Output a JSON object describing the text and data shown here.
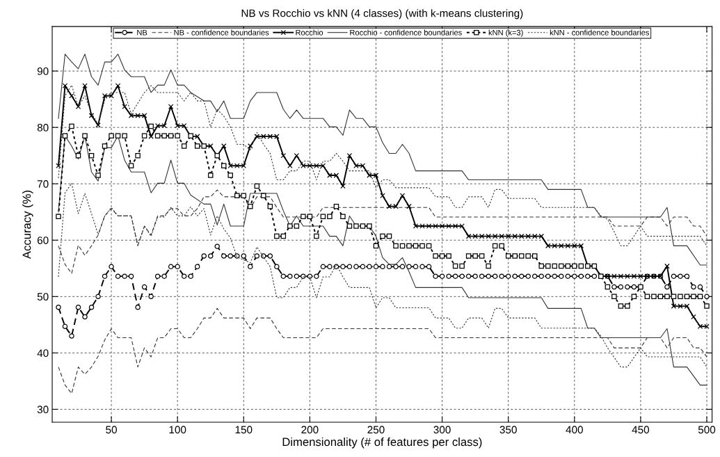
{
  "chart_data": {
    "type": "line",
    "title": "NB vs Rocchio vs kNN (4 classes) (with k-means clustering)",
    "xlabel": "Dimensionality (# of features per class)",
    "ylabel": "Accuracy (%)",
    "x": [
      10,
      15,
      20,
      25,
      30,
      35,
      40,
      45,
      50,
      55,
      60,
      65,
      70,
      75,
      80,
      85,
      90,
      95,
      100,
      105,
      110,
      115,
      120,
      125,
      130,
      135,
      140,
      145,
      150,
      155,
      160,
      165,
      170,
      175,
      180,
      185,
      190,
      195,
      200,
      205,
      210,
      215,
      220,
      225,
      230,
      235,
      240,
      245,
      250,
      255,
      260,
      265,
      270,
      275,
      280,
      285,
      290,
      295,
      300,
      305,
      310,
      315,
      320,
      325,
      330,
      335,
      340,
      345,
      350,
      355,
      360,
      365,
      370,
      375,
      380,
      385,
      390,
      395,
      400,
      405,
      410,
      415,
      420,
      425,
      430,
      435,
      440,
      445,
      450,
      455,
      460,
      465,
      470,
      475,
      480,
      485,
      490,
      495,
      500
    ],
    "xlim": [
      5.3,
      504
    ],
    "ylim": [
      27.7,
      97.9
    ],
    "xticks": [
      50,
      100,
      150,
      200,
      250,
      300,
      350,
      400,
      450,
      500
    ],
    "yticks": [
      30,
      40,
      50,
      60,
      70,
      80,
      90
    ],
    "grid": true,
    "legend": "top",
    "series": [
      {
        "name": "NB",
        "color": "#000000",
        "marker": "circle",
        "line_style": "dashed",
        "values": [
          48.1,
          44.7,
          43.0,
          48.1,
          46.4,
          48.1,
          50.0,
          53.6,
          55.3,
          53.6,
          53.6,
          53.6,
          48.1,
          51.7,
          50.0,
          53.6,
          53.6,
          55.3,
          55.3,
          53.6,
          53.6,
          55.3,
          57.2,
          57.2,
          58.9,
          57.2,
          57.2,
          57.2,
          57.2,
          55.3,
          57.2,
          57.2,
          57.2,
          55.3,
          53.6,
          53.6,
          53.6,
          53.6,
          53.6,
          53.6,
          55.3,
          55.3,
          55.3,
          55.3,
          55.3,
          55.3,
          55.3,
          55.3,
          55.3,
          55.3,
          55.3,
          55.3,
          55.3,
          55.3,
          55.3,
          55.3,
          55.3,
          53.6,
          53.6,
          53.6,
          53.6,
          53.6,
          53.6,
          53.6,
          53.6,
          53.6,
          53.6,
          53.6,
          53.6,
          53.6,
          53.6,
          53.6,
          53.6,
          53.6,
          53.6,
          53.6,
          53.6,
          53.6,
          53.6,
          53.6,
          53.6,
          53.6,
          53.6,
          53.6,
          51.7,
          51.7,
          51.7,
          51.7,
          51.7,
          53.6,
          53.6,
          53.6,
          51.7,
          53.6,
          53.6,
          53.6,
          51.7,
          51.7,
          50.0
        ]
      },
      {
        "name": "NB - confidence boundaries",
        "color": "#333333",
        "marker": "none",
        "line_style": "dashed",
        "x": [
          10,
          15,
          20,
          25,
          30,
          35,
          40,
          45,
          50,
          55,
          65,
          70,
          75,
          80,
          85,
          90,
          95,
          100,
          105,
          110,
          115,
          120,
          125,
          130,
          135,
          150,
          155,
          160,
          170,
          175,
          180,
          205,
          210,
          290,
          295,
          425,
          430,
          450,
          455,
          465,
          470,
          475,
          485,
          490,
          495,
          500
        ],
        "values": [
          59.0,
          55.7,
          54.1,
          59.1,
          57.3,
          59.0,
          60.9,
          64.3,
          65.6,
          64.3,
          64.3,
          59.0,
          62.5,
          60.9,
          64.3,
          64.3,
          65.6,
          65.6,
          64.3,
          64.3,
          65.6,
          67.7,
          67.7,
          68.9,
          67.7,
          67.7,
          65.6,
          67.7,
          67.7,
          65.8,
          64.1,
          64.1,
          65.8,
          65.8,
          64.1,
          64.1,
          62.5,
          62.5,
          64.1,
          64.1,
          62.5,
          64.1,
          64.1,
          62.5,
          62.5,
          60.7
        ]
      },
      {
        "color": "#333333",
        "marker": "none",
        "line_style": "dashed",
        "x": [
          10,
          15,
          20,
          25,
          30,
          35,
          40,
          45,
          50,
          55,
          65,
          70,
          75,
          80,
          85,
          90,
          95,
          100,
          105,
          110,
          115,
          120,
          125,
          130,
          135,
          150,
          155,
          160,
          170,
          175,
          180,
          205,
          210,
          290,
          295,
          425,
          430,
          450,
          455,
          465,
          470,
          475,
          485,
          490,
          495,
          500
        ],
        "values": [
          37.5,
          34.3,
          32.8,
          37.5,
          36.2,
          37.5,
          39.4,
          42.3,
          44.3,
          42.7,
          42.7,
          37.5,
          40.9,
          39.3,
          42.7,
          42.7,
          44.3,
          44.3,
          42.7,
          42.7,
          44.3,
          46.2,
          46.2,
          47.9,
          46.2,
          46.2,
          44.3,
          46.2,
          46.2,
          44.3,
          42.7,
          42.7,
          44.3,
          44.3,
          42.7,
          42.7,
          40.9,
          40.9,
          42.7,
          42.7,
          40.9,
          42.7,
          42.7,
          40.9,
          40.9,
          39.3
        ]
      },
      {
        "name": "Rocchio",
        "color": "#000000",
        "marker": "cross",
        "line_style": "solid",
        "values": [
          73.2,
          87.4,
          85.6,
          83.7,
          87.4,
          82.1,
          80.4,
          85.6,
          85.6,
          87.4,
          83.7,
          82.1,
          82.1,
          82.1,
          78.4,
          80.3,
          80.3,
          83.7,
          80.3,
          80.3,
          78.4,
          78.4,
          76.7,
          76.7,
          75.0,
          76.7,
          73.2,
          73.2,
          73.2,
          76.7,
          78.4,
          78.4,
          78.4,
          78.4,
          75.0,
          73.2,
          75.0,
          73.2,
          73.2,
          73.2,
          73.2,
          71.5,
          71.5,
          69.6,
          75.0,
          73.2,
          73.2,
          71.5,
          71.5,
          67.9,
          66.0,
          66.0,
          67.9,
          66.0,
          62.5,
          62.5,
          62.5,
          62.5,
          62.5,
          62.5,
          62.5,
          62.5,
          60.7,
          60.7,
          60.7,
          60.7,
          60.7,
          60.7,
          60.7,
          60.7,
          60.7,
          60.7,
          60.7,
          60.7,
          59.0,
          59.0,
          59.0,
          59.0,
          59.0,
          59.0,
          55.4,
          55.4,
          53.6,
          53.6,
          53.6,
          53.6,
          53.6,
          53.6,
          53.6,
          53.6,
          53.6,
          53.6,
          55.4,
          48.3,
          48.3,
          48.3,
          46.4,
          44.7,
          44.7
        ]
      },
      {
        "name": "Rocchio - confidence boundaries",
        "color": "#333333",
        "marker": "none",
        "line_style": "solid",
        "x": [
          10,
          15,
          20,
          25,
          30,
          35,
          40,
          45,
          50,
          55,
          60,
          65,
          75,
          80,
          85,
          90,
          95,
          100,
          105,
          110,
          120,
          125,
          130,
          135,
          140,
          150,
          155,
          160,
          175,
          180,
          185,
          190,
          195,
          210,
          215,
          220,
          225,
          230,
          235,
          240,
          245,
          250,
          255,
          260,
          265,
          270,
          275,
          280,
          315,
          320,
          375,
          380,
          405,
          410,
          415,
          420,
          465,
          470,
          475,
          485,
          495,
          500
        ],
        "values": [
          81.6,
          93.0,
          91.6,
          90.4,
          93.0,
          89.0,
          87.5,
          91.6,
          91.6,
          93.0,
          90.2,
          89.0,
          89.0,
          86.2,
          87.5,
          87.5,
          90.2,
          87.5,
          87.5,
          86.2,
          84.7,
          84.7,
          82.8,
          84.7,
          81.6,
          81.6,
          84.7,
          86.2,
          86.2,
          83.2,
          81.6,
          83.1,
          81.6,
          81.6,
          80.1,
          80.1,
          78.6,
          83.1,
          81.6,
          81.6,
          80.1,
          80.1,
          77.3,
          75.4,
          75.4,
          77.0,
          75.4,
          72.3,
          72.3,
          70.7,
          70.7,
          69.0,
          69.0,
          65.8,
          65.8,
          64.1,
          64.1,
          65.8,
          59.0,
          59.0,
          55.6,
          55.6
        ]
      },
      {
        "color": "#333333",
        "marker": "none",
        "line_style": "solid",
        "x": [
          10,
          15,
          20,
          25,
          30,
          35,
          40,
          45,
          50,
          55,
          60,
          65,
          75,
          80,
          85,
          90,
          95,
          100,
          105,
          110,
          120,
          125,
          130,
          135,
          140,
          150,
          155,
          175,
          180,
          185,
          190,
          195,
          210,
          215,
          220,
          225,
          230,
          235,
          245,
          250,
          255,
          260,
          265,
          270,
          275,
          280,
          315,
          320,
          375,
          380,
          405,
          410,
          415,
          420,
          465,
          470,
          475,
          485,
          495,
          500
        ],
        "values": [
          65.0,
          78.5,
          76.7,
          74.4,
          78.5,
          72.1,
          70.5,
          76.4,
          76.4,
          78.5,
          74.2,
          72.1,
          72.1,
          68.4,
          70.1,
          70.1,
          74.2,
          70.1,
          70.1,
          68.0,
          66.4,
          66.4,
          62.7,
          66.4,
          62.5,
          62.5,
          68.3,
          68.3,
          65.2,
          62.5,
          64.3,
          62.5,
          62.5,
          60.7,
          60.7,
          59.0,
          64.3,
          62.5,
          62.5,
          60.7,
          56.9,
          55.7,
          55.7,
          56.9,
          54.4,
          51.6,
          51.6,
          49.8,
          49.8,
          47.9,
          47.9,
          44.4,
          44.4,
          42.7,
          42.7,
          44.3,
          37.5,
          37.5,
          34.3,
          34.3
        ]
      },
      {
        "name": "kNN (k=3)",
        "color": "#000000",
        "marker": "square",
        "line_style": "dotted",
        "values": [
          64.2,
          78.5,
          80.2,
          75.0,
          78.5,
          75.0,
          71.5,
          76.7,
          78.5,
          78.5,
          78.5,
          73.2,
          75.0,
          78.5,
          80.2,
          78.5,
          78.5,
          78.5,
          78.5,
          76.7,
          78.5,
          76.7,
          76.7,
          71.5,
          75.0,
          73.2,
          71.5,
          67.9,
          67.9,
          66.0,
          69.6,
          67.9,
          66.0,
          60.7,
          60.7,
          62.5,
          62.5,
          64.2,
          64.2,
          60.7,
          64.2,
          64.2,
          66.0,
          64.2,
          62.5,
          62.5,
          62.5,
          62.5,
          59.0,
          60.7,
          60.7,
          59.0,
          59.0,
          59.0,
          59.0,
          59.0,
          59.0,
          57.2,
          57.2,
          57.2,
          55.4,
          55.4,
          57.2,
          57.2,
          57.2,
          55.4,
          59.0,
          59.0,
          57.2,
          57.2,
          57.2,
          57.2,
          57.2,
          55.4,
          55.4,
          55.4,
          55.4,
          55.4,
          55.4,
          55.4,
          55.4,
          55.4,
          53.6,
          51.7,
          50.0,
          48.3,
          48.3,
          50.0,
          51.7,
          50.0,
          50.0,
          50.0,
          50.0,
          50.0,
          50.0,
          50.0,
          50.0,
          50.0,
          48.3
        ]
      },
      {
        "name": "kNN - confidence boundaries",
        "color": "#333333",
        "marker": "none",
        "line_style": "dotted",
        "x": [
          10,
          15,
          20,
          25,
          30,
          35,
          40,
          45,
          50,
          60,
          65,
          70,
          75,
          80,
          85,
          100,
          105,
          110,
          115,
          120,
          125,
          130,
          135,
          140,
          145,
          150,
          155,
          160,
          165,
          170,
          175,
          180,
          185,
          190,
          195,
          200,
          205,
          210,
          215,
          220,
          225,
          230,
          245,
          250,
          255,
          260,
          265,
          290,
          295,
          305,
          310,
          315,
          320,
          330,
          335,
          340,
          345,
          350,
          370,
          375,
          415,
          420,
          425,
          430,
          435,
          440,
          450,
          455,
          495,
          500
        ],
        "values": [
          71.0,
          85.6,
          87.5,
          83.7,
          85.6,
          82.5,
          80.6,
          84.9,
          86.2,
          86.2,
          82.4,
          84.3,
          86.2,
          87.4,
          86.2,
          86.2,
          84.7,
          86.2,
          84.7,
          84.7,
          80.1,
          83.2,
          82.0,
          80.1,
          77.0,
          77.0,
          76.0,
          79.1,
          77.0,
          75.4,
          70.7,
          70.7,
          72.3,
          72.3,
          74.0,
          74.0,
          70.7,
          74.0,
          74.0,
          75.4,
          74.0,
          72.3,
          72.3,
          69.3,
          70.7,
          70.7,
          69.3,
          69.3,
          67.7,
          67.7,
          65.8,
          65.8,
          67.7,
          67.7,
          65.8,
          69.0,
          69.0,
          67.4,
          67.4,
          65.8,
          65.8,
          64.3,
          63.7,
          61.5,
          59.0,
          59.0,
          62.5,
          60.7,
          60.7,
          59.0
        ]
      },
      {
        "color": "#333333",
        "marker": "none",
        "line_style": "dotted",
        "x": [
          10,
          15,
          20,
          25,
          30,
          35,
          40,
          45,
          50,
          55,
          65,
          70,
          75,
          80,
          85,
          90,
          95,
          100,
          105,
          110,
          115,
          120,
          125,
          130,
          135,
          140,
          145,
          150,
          155,
          160,
          165,
          170,
          175,
          180,
          185,
          190,
          195,
          200,
          205,
          210,
          215,
          220,
          225,
          230,
          245,
          250,
          255,
          260,
          265,
          290,
          295,
          305,
          310,
          315,
          320,
          330,
          335,
          340,
          345,
          350,
          370,
          375,
          415,
          420,
          425,
          435,
          440,
          450,
          455,
          495,
          500
        ],
        "values": [
          53.5,
          68.4,
          70.1,
          64.7,
          68.3,
          64.7,
          61.0,
          64.3,
          65.8,
          64.3,
          64.3,
          59.1,
          62.5,
          60.7,
          64.1,
          64.1,
          65.8,
          64.3,
          64.3,
          65.9,
          64.3,
          65.6,
          60.9,
          64.3,
          62.0,
          60.4,
          57.0,
          56.5,
          56.0,
          58.8,
          57.0,
          55.3,
          49.8,
          49.8,
          51.6,
          51.6,
          53.5,
          53.5,
          49.8,
          53.5,
          53.5,
          55.7,
          53.5,
          51.6,
          51.6,
          48.0,
          49.8,
          49.8,
          48.0,
          48.0,
          46.2,
          46.2,
          44.4,
          44.4,
          46.2,
          46.2,
          44.4,
          47.9,
          47.9,
          46.2,
          46.2,
          44.4,
          44.4,
          43.0,
          40.9,
          37.5,
          37.5,
          40.9,
          39.3,
          39.3,
          37.5
        ]
      }
    ]
  }
}
